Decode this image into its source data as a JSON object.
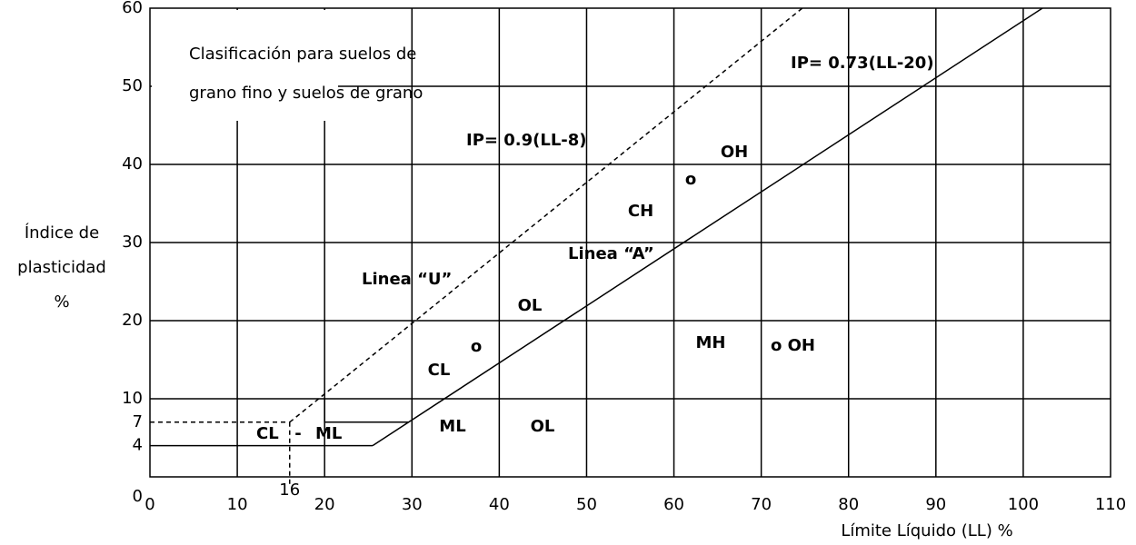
{
  "chart_data": {
    "type": "line",
    "x_label": "Límite Líquido (LL)  %",
    "y_label": [
      "Índice de",
      "plasticidad",
      "%"
    ],
    "xlim": [
      0,
      110
    ],
    "ylim": [
      0,
      60
    ],
    "xticks": [
      0,
      10,
      16,
      20,
      30,
      40,
      50,
      60,
      70,
      80,
      90,
      100,
      110
    ],
    "yticks": [
      0,
      4,
      7,
      10,
      20,
      30,
      40,
      50,
      60
    ],
    "xgrid": [
      10,
      20,
      30,
      40,
      50,
      60,
      70,
      80,
      90,
      100
    ],
    "ygrid": [
      10,
      20,
      30,
      40,
      50
    ],
    "series": [
      {
        "color": "#000000",
        "dashed": false,
        "x": [
          25.5,
          102.2
        ],
        "values": [
          4,
          60
        ]
      },
      {
        "color": "#000000",
        "dashed": true,
        "x": [
          16,
          74.7
        ],
        "values": [
          7,
          60
        ]
      },
      {
        "color": "#000000",
        "dashed": false,
        "x": [
          0,
          25.5
        ],
        "values": [
          4,
          4
        ]
      },
      {
        "color": "#000000",
        "dashed": true,
        "x": [
          0,
          16
        ],
        "values": [
          7,
          7
        ]
      },
      {
        "color": "#000000",
        "dashed": true,
        "x": [
          16,
          16
        ],
        "values": [
          7,
          -1
        ]
      },
      {
        "color": "#000000",
        "dashed": false,
        "x": [
          20,
          20,
          29.6
        ],
        "values": [
          10,
          7,
          7
        ]
      }
    ],
    "note": [
      "Clasificación para suelos de",
      "grano fino y suelos de grano"
    ],
    "annotations": [
      "IP= 0.73(LL-20)",
      "IP= 0.9(LL-8)",
      "OH",
      "o",
      "CH",
      "Linea “A”",
      "Linea “U”",
      "OL",
      "o",
      "CL",
      "MH",
      "o OH",
      "ML",
      "OL",
      "CL",
      "-",
      "ML"
    ]
  }
}
